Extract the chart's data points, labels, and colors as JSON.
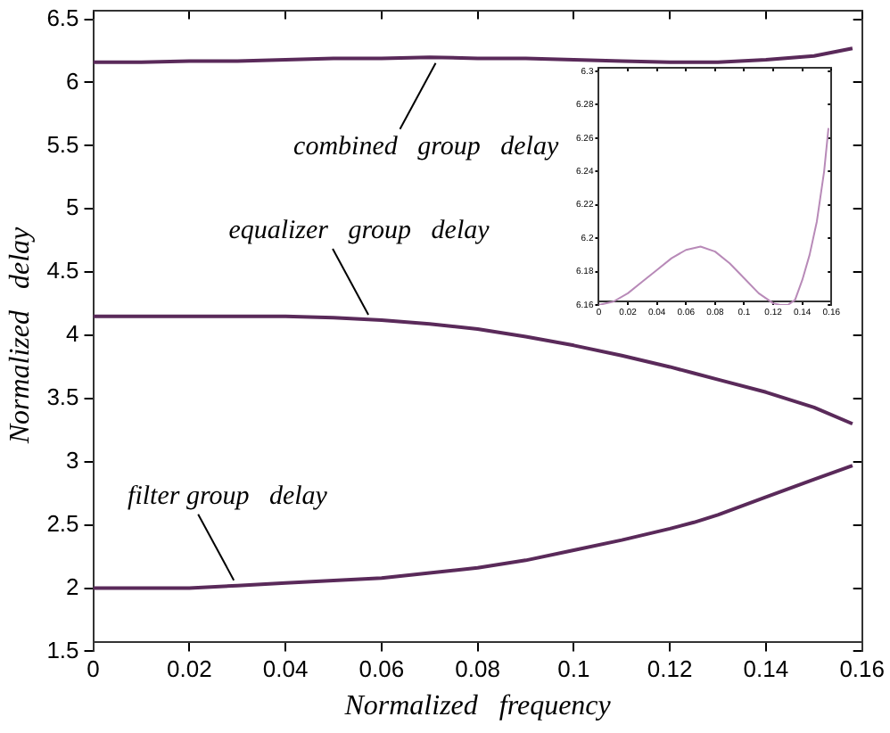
{
  "chart_data": [
    {
      "type": "line",
      "xlabel": "Normalized   frequency",
      "ylabel": "Normalized   delay",
      "x": [
        0,
        0.01,
        0.02,
        0.03,
        0.04,
        0.05,
        0.06,
        0.07,
        0.08,
        0.09,
        0.1,
        0.11,
        0.12,
        0.125,
        0.13,
        0.14,
        0.15,
        0.158
      ],
      "series": [
        {
          "color": "#5a2a5a",
          "values": [
            6.16,
            6.16,
            6.17,
            6.17,
            6.18,
            6.19,
            6.19,
            6.2,
            6.19,
            6.19,
            6.18,
            6.17,
            6.16,
            6.16,
            6.16,
            6.18,
            6.21,
            6.27
          ]
        },
        {
          "color": "#5a2a5a",
          "values": [
            4.15,
            4.15,
            4.15,
            4.15,
            4.15,
            4.14,
            4.12,
            4.09,
            4.05,
            3.99,
            3.92,
            3.84,
            3.75,
            3.7,
            3.65,
            3.55,
            3.43,
            3.3
          ]
        },
        {
          "color": "#5a2a5a",
          "values": [
            2.0,
            2.0,
            2.0,
            2.02,
            2.04,
            2.06,
            2.08,
            2.12,
            2.16,
            2.22,
            2.3,
            2.38,
            2.47,
            2.52,
            2.58,
            2.72,
            2.86,
            2.97
          ]
        }
      ],
      "xlim": [
        0,
        0.16
      ],
      "xticks": [
        0,
        0.02,
        0.04,
        0.06,
        0.08,
        0.1,
        0.12,
        0.14,
        0.16
      ],
      "ylim": [
        1.5,
        6.5
      ],
      "yticks": [
        1.5,
        2,
        2.5,
        3,
        3.5,
        4,
        4.5,
        5,
        5.5,
        6,
        6.5
      ],
      "grid": false,
      "legend": false,
      "marker": "none",
      "line_style": "solid",
      "annotations": [
        {
          "text": "combined   group   delay",
          "x": 0.072,
          "y": 6.195
        },
        {
          "text": "equalizer   group   delay",
          "x": 0.058,
          "y": 4.12
        },
        {
          "text": "filter group   delay",
          "x": 0.03,
          "y": 2.02
        }
      ]
    },
    {
      "type": "line",
      "x": [
        0,
        0.01,
        0.02,
        0.03,
        0.04,
        0.05,
        0.06,
        0.07,
        0.08,
        0.09,
        0.1,
        0.11,
        0.12,
        0.125,
        0.13,
        0.135,
        0.14,
        0.145,
        0.15,
        0.155,
        0.158
      ],
      "series": [
        {
          "color": "#b88ab8",
          "values": [
            6.16,
            6.162,
            6.167,
            6.174,
            6.181,
            6.188,
            6.193,
            6.195,
            6.192,
            6.185,
            6.176,
            6.167,
            6.161,
            6.16,
            6.16,
            6.163,
            6.175,
            6.19,
            6.21,
            6.24,
            6.266
          ]
        }
      ],
      "xlim": [
        0,
        0.16
      ],
      "xticks": [
        0,
        0.02,
        0.04,
        0.06,
        0.08,
        0.1,
        0.12,
        0.14,
        0.16
      ],
      "ylim": [
        6.16,
        6.3
      ],
      "yticks": [
        6.16,
        6.18,
        6.2,
        6.22,
        6.24,
        6.26,
        6.28,
        6.3
      ],
      "grid": false,
      "legend": false,
      "marker": "none",
      "line_style": "solid"
    }
  ]
}
